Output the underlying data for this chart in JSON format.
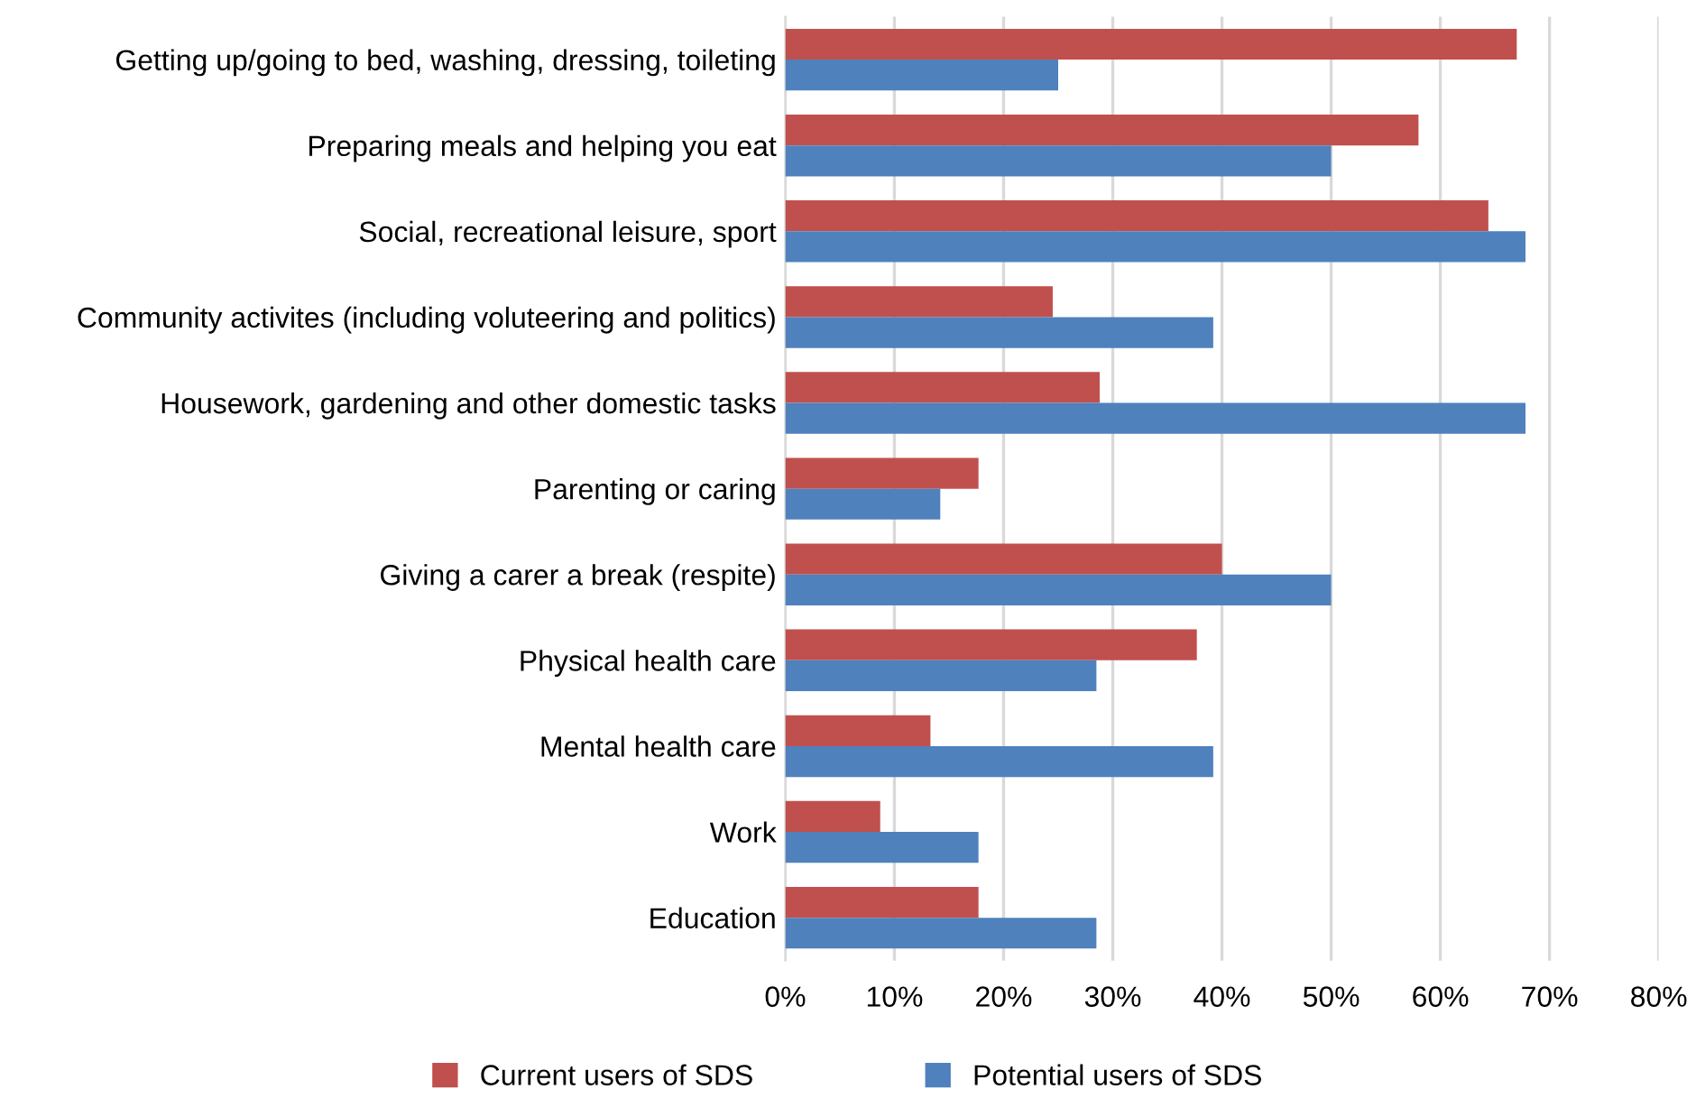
{
  "chart_data": {
    "type": "bar",
    "orientation": "horizontal",
    "categories": [
      "Getting up/going to bed, washing, dressing, toileting",
      "Preparing meals and helping you eat",
      "Social, recreational leisure, sport",
      "Community activites (including voluteering and politics)",
      "Housework, gardening and other domestic tasks",
      "Parenting or caring",
      "Giving a carer a break (respite)",
      "Physical health care",
      "Mental health care",
      "Work",
      "Education"
    ],
    "series": [
      {
        "name": "Current users of SDS",
        "color": "#c0504d",
        "values": [
          67,
          58,
          64.4,
          24.5,
          28.8,
          17.7,
          40,
          37.7,
          13.3,
          8.7,
          17.7
        ]
      },
      {
        "name": "Potential users of SDS",
        "color": "#4f81bd",
        "values": [
          25,
          50,
          67.8,
          39.2,
          67.8,
          14.2,
          50,
          28.5,
          39.2,
          17.7,
          28.5
        ]
      }
    ],
    "xlim": [
      0,
      80
    ],
    "xticks": [
      {
        "value": 0,
        "label": "0%"
      },
      {
        "value": 10,
        "label": "10%"
      },
      {
        "value": 20,
        "label": "20%"
      },
      {
        "value": 30,
        "label": "30%"
      },
      {
        "value": 40,
        "label": "40%"
      },
      {
        "value": 50,
        "label": "50%"
      },
      {
        "value": 60,
        "label": "60%"
      },
      {
        "value": 70,
        "label": "70%"
      },
      {
        "value": 80,
        "label": "80%"
      }
    ],
    "grid": "x",
    "legend": "bottom"
  }
}
